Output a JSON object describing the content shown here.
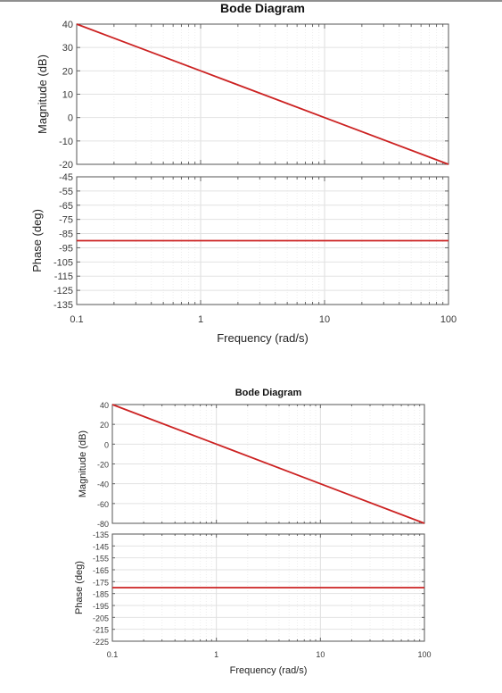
{
  "chart_data": [
    {
      "type": "line",
      "title": "Bode Diagram",
      "xlabel": "Frequency  (rad/s)",
      "xscale": "log",
      "xlim": [
        0.1,
        100
      ],
      "xticks": [
        "0.1",
        "1",
        "10",
        "100"
      ],
      "grid": true,
      "color": "#cc2222",
      "magnitude": {
        "ylabel": "Magnitude (dB)",
        "ylim": [
          -20,
          40
        ],
        "yticks": [
          "40",
          "30",
          "20",
          "10",
          "0",
          "-10",
          "-20"
        ],
        "series": [
          {
            "x": [
              0.1,
              1,
              10,
              100
            ],
            "values": [
              40,
              20,
              0,
              -20
            ]
          }
        ]
      },
      "phase": {
        "ylabel": "Phase (deg)",
        "ylim": [
          -135,
          -45
        ],
        "yticks": [
          "-45",
          "-55",
          "-65",
          "-75",
          "-85",
          "-95",
          "-105",
          "-115",
          "-125",
          "-135"
        ],
        "series": [
          {
            "x": [
              0.1,
              100
            ],
            "values": [
              -90,
              -90
            ]
          }
        ]
      }
    },
    {
      "type": "line",
      "title": "Bode Diagram",
      "xlabel": "Frequency  (rad/s)",
      "xscale": "log",
      "xlim": [
        0.1,
        100
      ],
      "xticks": [
        "0.1",
        "1",
        "10",
        "100"
      ],
      "grid": true,
      "color": "#cc2222",
      "magnitude": {
        "ylabel": "Magnitude (dB)",
        "ylim": [
          -80,
          40
        ],
        "yticks": [
          "40",
          "20",
          "0",
          "-20",
          "-40",
          "-60",
          "-80"
        ],
        "series": [
          {
            "x": [
              0.1,
              1,
              10,
              100
            ],
            "values": [
              40,
              0,
              -40,
              -80
            ]
          }
        ]
      },
      "phase": {
        "ylabel": "Phase (deg)",
        "ylim": [
          -225,
          -135
        ],
        "yticks": [
          "-135",
          "-145",
          "-155",
          "-165",
          "-175",
          "-185",
          "-195",
          "-205",
          "-215",
          "-225"
        ],
        "series": [
          {
            "x": [
              0.1,
              100
            ],
            "values": [
              -180,
              -180
            ]
          }
        ]
      }
    }
  ]
}
